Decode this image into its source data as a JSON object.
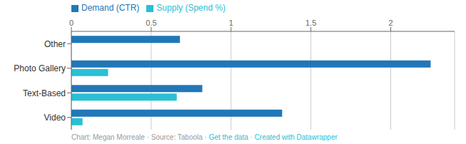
{
  "chart_data": {
    "type": "bar",
    "orientation": "horizontal",
    "categories": [
      "Other",
      "Photo Gallery",
      "Text-Based",
      "Video"
    ],
    "series": [
      {
        "name": "Demand (CTR)",
        "color": "#2177B8",
        "values": [
          0.68,
          2.25,
          0.82,
          1.32
        ]
      },
      {
        "name": "Supply (Spend %)",
        "color": "#29C0D4",
        "values": [
          0.0,
          0.23,
          0.66,
          0.07
        ]
      }
    ],
    "xlim": [
      0,
      2.4
    ],
    "xticks": [
      0,
      0.5,
      1,
      1.5,
      2
    ],
    "grid": true,
    "legend": "top-left",
    "annotations": [
      {
        "text": "Chart: Megan Morreale · Source: Taboola · ",
        "color": "#999999"
      },
      {
        "text": "Get the data",
        "color": "#29C0D4"
      },
      {
        "text": " · ",
        "color": "#999999"
      },
      {
        "text": "Created with Datawrapper",
        "color": "#29C0D4"
      }
    ]
  }
}
